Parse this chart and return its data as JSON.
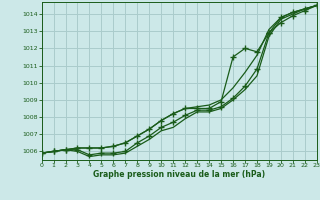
{
  "bg_color": "#cce8e8",
  "grid_color": "#aacccc",
  "line_color": "#1a5c1a",
  "xlabel": "Graphe pression niveau de la mer (hPa)",
  "xlim": [
    0,
    23
  ],
  "ylim": [
    1005.5,
    1014.7
  ],
  "yticks": [
    1006,
    1007,
    1008,
    1009,
    1010,
    1011,
    1012,
    1013,
    1014
  ],
  "xticks": [
    0,
    1,
    2,
    3,
    4,
    5,
    6,
    7,
    8,
    9,
    10,
    11,
    12,
    13,
    14,
    15,
    16,
    17,
    18,
    19,
    20,
    21,
    22,
    23
  ],
  "hours": [
    0,
    1,
    2,
    3,
    4,
    5,
    6,
    7,
    8,
    9,
    10,
    11,
    12,
    13,
    14,
    15,
    16,
    17,
    18,
    19,
    20,
    21,
    22,
    23
  ],
  "line_main": [
    1005.9,
    1006.0,
    1006.1,
    1006.1,
    1005.8,
    1005.9,
    1005.9,
    1006.0,
    1006.5,
    1006.9,
    1007.4,
    1007.7,
    1008.1,
    1008.4,
    1008.4,
    1008.6,
    1009.1,
    1009.8,
    1010.8,
    1012.9,
    1013.8,
    1014.1,
    1014.3,
    1014.5
  ],
  "line_high": [
    1005.9,
    1006.0,
    1006.1,
    1006.2,
    1006.2,
    1006.2,
    1006.3,
    1006.5,
    1006.9,
    1007.3,
    1007.8,
    1008.2,
    1008.5,
    1008.6,
    1008.7,
    1009.0,
    1009.7,
    1010.6,
    1011.6,
    1013.1,
    1013.8,
    1014.1,
    1014.3,
    1014.5
  ],
  "line_low": [
    1005.9,
    1006.0,
    1006.1,
    1006.0,
    1005.7,
    1005.8,
    1005.8,
    1005.9,
    1006.3,
    1006.7,
    1007.2,
    1007.4,
    1007.9,
    1008.3,
    1008.3,
    1008.5,
    1009.0,
    1009.6,
    1010.4,
    1012.7,
    1013.7,
    1014.0,
    1014.3,
    1014.5
  ],
  "line_spike": [
    1005.9,
    1006.0,
    1006.1,
    1006.2,
    1006.2,
    1006.2,
    1006.3,
    1006.5,
    1006.9,
    1007.3,
    1007.8,
    1008.2,
    1008.5,
    1008.5,
    1008.5,
    1008.9,
    1011.5,
    1012.0,
    1011.8,
    1012.9,
    1013.5,
    1013.9,
    1014.2,
    1014.5
  ]
}
